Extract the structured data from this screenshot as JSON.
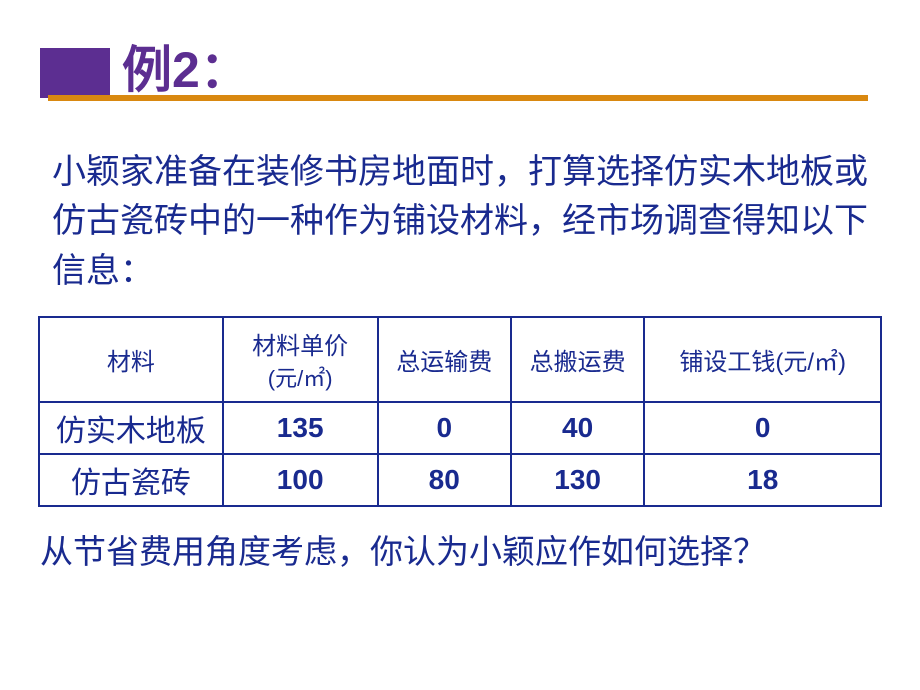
{
  "title": "例2：",
  "intro": "小颖家准备在装修书房地面时，打算选择仿实木地板或仿古瓷砖中的一种作为铺设材料，经市场调查得知以下信息：",
  "table": {
    "headers": {
      "material": "材料",
      "unit_price_l1": "材料单价",
      "unit_price_l2": "(元/㎡)",
      "shipping": "总运输费",
      "moving": "总搬运费",
      "labor": "铺设工钱(元/㎡)"
    },
    "rows": [
      {
        "name": "仿实木地板",
        "unit_price": "135",
        "shipping": "0",
        "moving": "40",
        "labor": "0"
      },
      {
        "name": "仿古瓷砖",
        "unit_price": "100",
        "shipping": "80",
        "moving": "130",
        "labor": "18"
      }
    ]
  },
  "question": "从节省费用角度考虑，你认为小颖应作如何选择？",
  "colors": {
    "text_primary": "#192a8f",
    "accent_purple": "#5c2e91",
    "accent_orange": "#d98810",
    "background": "#ffffff"
  }
}
